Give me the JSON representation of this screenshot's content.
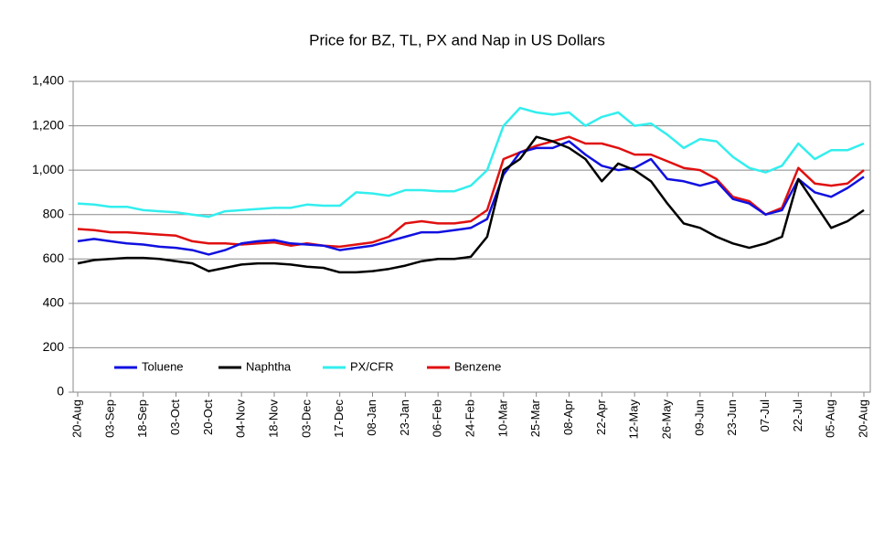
{
  "chart_data": {
    "type": "line",
    "title": "Price for BZ, TL, PX and Nap in US Dollars",
    "categories": [
      "20-Aug",
      null,
      "03-Sep",
      null,
      "18-Sep",
      null,
      "03-Oct",
      null,
      "20-Oct",
      null,
      "04-Nov",
      null,
      "18-Nov",
      null,
      "03-Dec",
      null,
      "17-Dec",
      null,
      "08-Jan",
      null,
      "23-Jan",
      null,
      "06-Feb",
      null,
      "24-Feb",
      null,
      "10-Mar",
      null,
      "25-Mar",
      null,
      "08-Apr",
      null,
      "22-Apr",
      null,
      "12-May",
      null,
      "26-May",
      null,
      "09-Jun",
      null,
      "23-Jun",
      null,
      "07-Jul",
      null,
      "22-Jul",
      null,
      "05-Aug",
      null,
      "20-Aug"
    ],
    "series": [
      {
        "name": "Toluene",
        "color": "#1010e0",
        "values": [
          680,
          690,
          680,
          670,
          665,
          655,
          650,
          640,
          620,
          640,
          670,
          680,
          685,
          670,
          665,
          660,
          640,
          650,
          660,
          680,
          700,
          720,
          720,
          730,
          740,
          780,
          980,
          1080,
          1100,
          1100,
          1130,
          1070,
          1020,
          1000,
          1010,
          1050,
          960,
          950,
          930,
          950,
          870,
          850,
          800,
          820,
          960,
          900,
          880,
          920,
          970
        ]
      },
      {
        "name": "Naphtha",
        "color": "#000000",
        "values": [
          580,
          595,
          600,
          605,
          605,
          600,
          590,
          580,
          545,
          560,
          575,
          580,
          580,
          575,
          565,
          560,
          540,
          540,
          545,
          555,
          570,
          590,
          600,
          600,
          610,
          700,
          1000,
          1050,
          1150,
          1130,
          1100,
          1050,
          950,
          1030,
          1000,
          950,
          850,
          760,
          740,
          700,
          670,
          650,
          670,
          700,
          960,
          850,
          740,
          770,
          820
        ]
      },
      {
        "name": "PX/CFR",
        "color": "#33eeee",
        "values": [
          850,
          845,
          835,
          835,
          820,
          815,
          810,
          800,
          790,
          815,
          820,
          825,
          830,
          830,
          845,
          840,
          840,
          900,
          895,
          885,
          910,
          910,
          905,
          905,
          930,
          1000,
          1200,
          1280,
          1260,
          1250,
          1260,
          1200,
          1240,
          1260,
          1200,
          1210,
          1160,
          1100,
          1140,
          1130,
          1060,
          1010,
          990,
          1020,
          1120,
          1050,
          1090,
          1090,
          1120
        ]
      },
      {
        "name": "Benzene",
        "color": "#e01010",
        "values": [
          735,
          730,
          720,
          720,
          715,
          710,
          705,
          680,
          670,
          670,
          665,
          670,
          675,
          660,
          670,
          660,
          655,
          665,
          675,
          700,
          760,
          770,
          760,
          760,
          770,
          820,
          1050,
          1080,
          1110,
          1130,
          1150,
          1120,
          1120,
          1100,
          1070,
          1070,
          1040,
          1010,
          1000,
          960,
          880,
          860,
          800,
          830,
          1010,
          940,
          930,
          940,
          1000
        ]
      }
    ],
    "ylim": [
      0,
      1400
    ],
    "yticks": [
      0,
      200,
      400,
      600,
      800,
      {
        "value": 1000,
        "label": "1,000"
      },
      {
        "value": 1200,
        "label": "1,200"
      },
      {
        "value": 1400,
        "label": "1,400"
      }
    ],
    "grid": true
  }
}
